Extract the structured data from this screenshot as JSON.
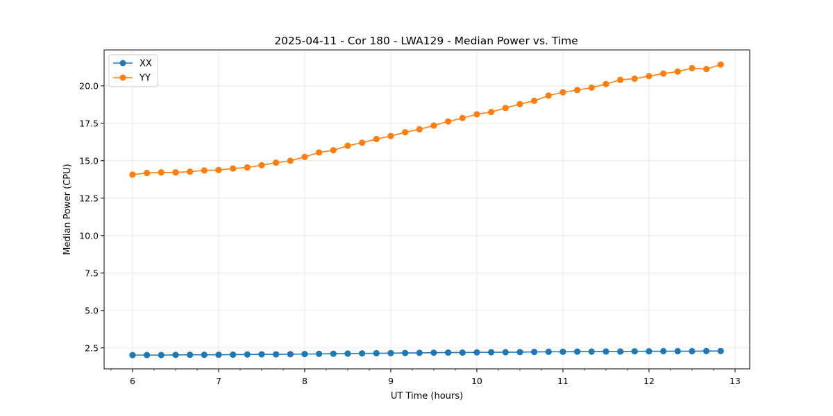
{
  "chart_data": {
    "type": "line",
    "title": "2025-04-11 - Cor 180 - LWA129 - Median Power vs. Time",
    "xlabel": "UT Time (hours)",
    "ylabel": "Median Power (CPU)",
    "xlim": [
      5.67,
      13.17
    ],
    "ylim": [
      1.1,
      22.4
    ],
    "xticks": [
      6,
      7,
      8,
      9,
      10,
      11,
      12,
      13
    ],
    "xtick_labels": [
      "6",
      "7",
      "8",
      "9",
      "10",
      "11",
      "12",
      "13"
    ],
    "yticks": [
      2.5,
      5.0,
      7.5,
      10.0,
      12.5,
      15.0,
      17.5,
      20.0
    ],
    "ytick_labels": [
      "2.5",
      "5.0",
      "7.5",
      "10.0",
      "12.5",
      "15.0",
      "17.5",
      "20.0"
    ],
    "grid": true,
    "legend_position": "upper-left",
    "x": [
      6.0,
      6.1667,
      6.3333,
      6.5,
      6.6667,
      6.8333,
      7.0,
      7.1667,
      7.3333,
      7.5,
      7.6667,
      7.8333,
      8.0,
      8.1667,
      8.3333,
      8.5,
      8.6667,
      8.8333,
      9.0,
      9.1667,
      9.3333,
      9.5,
      9.6667,
      9.8333,
      10.0,
      10.1667,
      10.3333,
      10.5,
      10.6667,
      10.8333,
      11.0,
      11.1667,
      11.3333,
      11.5,
      11.6667,
      11.8333,
      12.0,
      12.1667,
      12.3333,
      12.5,
      12.6667,
      12.8333
    ],
    "series": [
      {
        "name": "XX",
        "color": "#1f77b4",
        "values": [
          2.02,
          2.02,
          2.02,
          2.03,
          2.04,
          2.04,
          2.04,
          2.05,
          2.06,
          2.07,
          2.07,
          2.08,
          2.09,
          2.1,
          2.11,
          2.12,
          2.13,
          2.14,
          2.15,
          2.16,
          2.17,
          2.18,
          2.19,
          2.19,
          2.2,
          2.21,
          2.21,
          2.22,
          2.23,
          2.24,
          2.24,
          2.25,
          2.25,
          2.26,
          2.26,
          2.27,
          2.27,
          2.28,
          2.28,
          2.28,
          2.29,
          2.29
        ]
      },
      {
        "name": "YY",
        "color": "#ff7f0e",
        "values": [
          14.07,
          14.18,
          14.22,
          14.22,
          14.27,
          14.35,
          14.38,
          14.48,
          14.55,
          14.7,
          14.87,
          15.0,
          15.25,
          15.55,
          15.7,
          16.0,
          16.2,
          16.45,
          16.65,
          16.9,
          17.1,
          17.35,
          17.62,
          17.85,
          18.1,
          18.25,
          18.52,
          18.78,
          19.0,
          19.35,
          19.57,
          19.72,
          19.88,
          20.12,
          20.4,
          20.48,
          20.65,
          20.82,
          20.95,
          21.18,
          21.12,
          21.42
        ]
      }
    ]
  }
}
